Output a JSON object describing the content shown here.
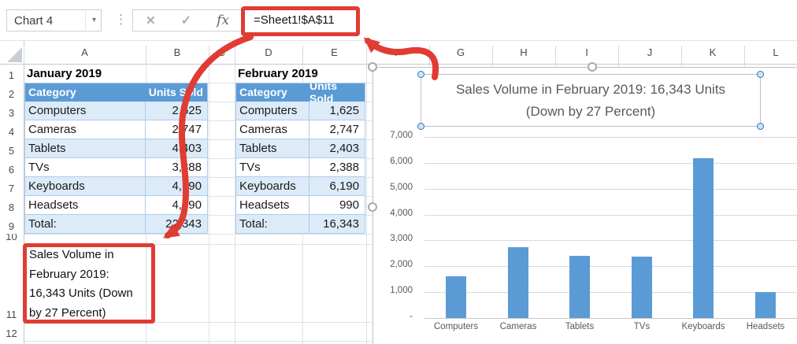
{
  "toolbar": {
    "name_box_value": "Chart 4",
    "cancel_icon": "✕",
    "enter_icon": "✓",
    "fx_icon": "fx",
    "formula": "=Sheet1!$A$11"
  },
  "sheet": {
    "column_headers": [
      "A",
      "B",
      "C",
      "D",
      "E",
      "F",
      "G",
      "H",
      "I",
      "J",
      "K",
      "L"
    ],
    "row_headers": [
      "1",
      "2",
      "3",
      "4",
      "5",
      "6",
      "7",
      "8",
      "9",
      "10",
      "11",
      "12"
    ]
  },
  "tables": [
    {
      "title": "January 2019",
      "headers": [
        "Category",
        "Units Sold"
      ],
      "rows": [
        [
          "Computers",
          "2,625"
        ],
        [
          "Cameras",
          "2,747"
        ],
        [
          "Tablets",
          "4,403"
        ],
        [
          "TVs",
          "3,388"
        ],
        [
          "Keyboards",
          "4,190"
        ],
        [
          "Headsets",
          "4,990"
        ],
        [
          "Total:",
          "22,343"
        ]
      ]
    },
    {
      "title": "February 2019",
      "headers": [
        "Category",
        "Units Sold"
      ],
      "rows": [
        [
          "Computers",
          "1,625"
        ],
        [
          "Cameras",
          "2,747"
        ],
        [
          "Tablets",
          "2,403"
        ],
        [
          "TVs",
          "2,388"
        ],
        [
          "Keyboards",
          "6,190"
        ],
        [
          "Headsets",
          "990"
        ],
        [
          "Total:",
          "16,343"
        ]
      ]
    }
  ],
  "cell_a11": {
    "lines": [
      "Sales Volume in",
      "February 2019:",
      "16,343 Units (Down",
      "by 27 Percent)"
    ]
  },
  "chart_data": {
    "type": "bar",
    "title": "Sales Volume in February 2019: 16,343 Units (Down by 27 Percent)",
    "title_lines": [
      "Sales Volume in February 2019: 16,343 Units",
      "(Down by 27 Percent)"
    ],
    "categories": [
      "Computers",
      "Cameras",
      "Tablets",
      "TVs",
      "Keyboards",
      "Headsets"
    ],
    "values": [
      1625,
      2747,
      2403,
      2388,
      6190,
      990
    ],
    "y_tick_labels": [
      "7,000",
      "6,000",
      "5,000",
      "4,000",
      "3,000",
      "2,000",
      "1,000",
      "-"
    ],
    "y_tick_values": [
      7000,
      6000,
      5000,
      4000,
      3000,
      2000,
      1000,
      0
    ],
    "ylim": [
      0,
      7500
    ],
    "xlabel": "",
    "ylabel": "",
    "legend": "none",
    "gridlines": true,
    "bar_color": "#5b9bd5"
  },
  "colors": {
    "annotation_red": "#e03c33",
    "table_header_blue": "#5b9bd5",
    "table_band_blue": "#dcebf7",
    "table_border_blue": "#aecbec",
    "axis_text_gray": "#595959",
    "bar_blue": "#5b9bd5"
  }
}
